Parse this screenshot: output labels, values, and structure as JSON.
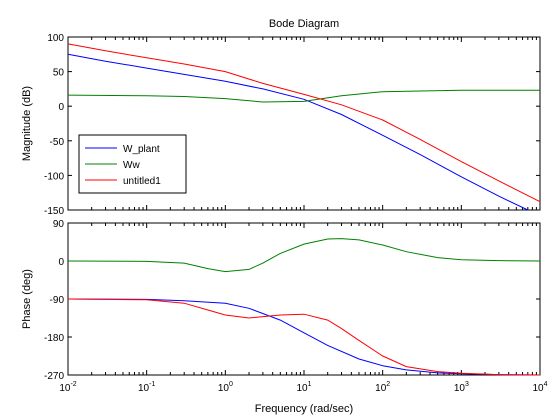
{
  "chart_data": {
    "type": "line",
    "title": "Bode Diagram",
    "xlabel": "Frequency  (rad/sec)",
    "xscale": "log",
    "xlim": [
      0.01,
      10000
    ],
    "x_ticks": [
      {
        "value": 0.01,
        "base": "10",
        "exp": "-2"
      },
      {
        "value": 0.1,
        "base": "10",
        "exp": "-1"
      },
      {
        "value": 1,
        "base": "10",
        "exp": "0"
      },
      {
        "value": 10,
        "base": "10",
        "exp": "1"
      },
      {
        "value": 100,
        "base": "10",
        "exp": "2"
      },
      {
        "value": 1000,
        "base": "10",
        "exp": "3"
      },
      {
        "value": 10000,
        "base": "10",
        "exp": "4"
      }
    ],
    "grid": false,
    "legend": {
      "placement": "lower-left of magnitude plot",
      "entries": [
        {
          "label": "W_plant",
          "color": "#0000ff"
        },
        {
          "label": "Ww",
          "color": "#008000"
        },
        {
          "label": "untitled1",
          "color": "#ff0000"
        }
      ]
    },
    "panels": {
      "magnitude": {
        "ylabel": "Magnitude (dB)",
        "ylim": [
          -150,
          100
        ],
        "y_ticks": [
          {
            "value": 100,
            "label": "100"
          },
          {
            "value": 50,
            "label": "50"
          },
          {
            "value": 0,
            "label": "0"
          },
          {
            "value": -50,
            "label": "-50"
          },
          {
            "value": -100,
            "label": "-100"
          },
          {
            "value": -150,
            "label": "-150"
          }
        ],
        "series": [
          {
            "name": "W_plant",
            "color": "#0000ff",
            "x": [
              0.01,
              0.03,
              0.1,
              0.3,
              1,
              3,
              10,
              30,
              100,
              300,
              1000,
              3000,
              7000
            ],
            "y": [
              75,
              65,
              55,
              46,
              36,
              25,
              10,
              -12,
              -42,
              -70,
              -102,
              -130,
              -150
            ]
          },
          {
            "name": "Ww",
            "color": "#008000",
            "x": [
              0.01,
              0.1,
              0.3,
              1,
              3,
              10,
              30,
              100,
              300,
              1000,
              10000
            ],
            "y": [
              16,
              15,
              14,
              11,
              6,
              7,
              15,
              21,
              22,
              23,
              23
            ]
          },
          {
            "name": "untitled1",
            "color": "#ff0000",
            "x": [
              0.01,
              0.03,
              0.1,
              0.3,
              1,
              3,
              10,
              30,
              100,
              300,
              1000,
              3000,
              10000
            ],
            "y": [
              90,
              80,
              70,
              61,
              50,
              33,
              17,
              2,
              -20,
              -48,
              -80,
              -108,
              -138
            ]
          }
        ]
      },
      "phase": {
        "ylabel": "Phase (deg)",
        "ylim": [
          -270,
          90
        ],
        "y_ticks": [
          {
            "value": 90,
            "label": "90"
          },
          {
            "value": 0,
            "label": "0"
          },
          {
            "value": -90,
            "label": "-90"
          },
          {
            "value": -180,
            "label": "-180"
          },
          {
            "value": -270,
            "label": "-270"
          }
        ],
        "series": [
          {
            "name": "W_plant",
            "color": "#0000ff",
            "x": [
              0.01,
              0.1,
              0.3,
              1,
              2,
              5,
              10,
              20,
              50,
              100,
              200,
              500,
              1000,
              3000,
              10000
            ],
            "y": [
              -90,
              -91,
              -94,
              -100,
              -112,
              -140,
              -170,
              -200,
              -232,
              -248,
              -258,
              -265,
              -267,
              -269,
              -270
            ]
          },
          {
            "name": "Ww",
            "color": "#008000",
            "x": [
              0.01,
              0.1,
              0.3,
              0.6,
              1,
              2,
              3,
              5,
              10,
              20,
              30,
              50,
              100,
              200,
              500,
              1000,
              3000,
              10000
            ],
            "y": [
              0,
              -1,
              -5,
              -18,
              -25,
              -20,
              -5,
              18,
              40,
              52,
              53,
              50,
              38,
              22,
              8,
              3,
              1,
              0
            ]
          },
          {
            "name": "untitled1",
            "color": "#ff0000",
            "x": [
              0.01,
              0.1,
              0.3,
              0.6,
              1,
              2,
              5,
              10,
              20,
              30,
              50,
              100,
              200,
              500,
              1000,
              3000,
              10000
            ],
            "y": [
              -90,
              -92,
              -100,
              -116,
              -128,
              -135,
              -128,
              -126,
              -140,
              -160,
              -188,
              -225,
              -250,
              -262,
              -266,
              -269,
              -270
            ]
          }
        ]
      }
    }
  }
}
